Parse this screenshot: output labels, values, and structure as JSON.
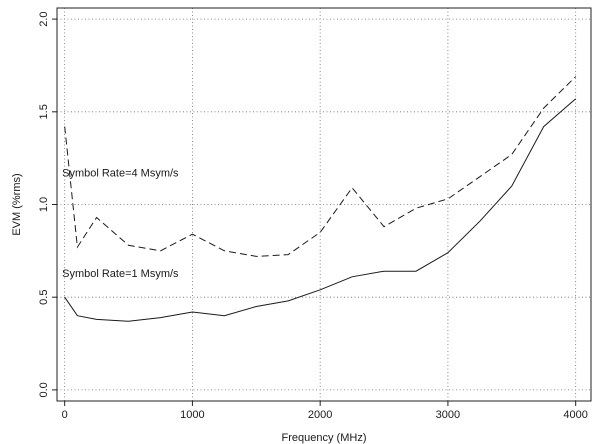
{
  "chart_data": {
    "type": "line",
    "xlabel": "Frequency (MHz)",
    "ylabel": "EVM (%rms)",
    "xlim": [
      -60,
      4120
    ],
    "ylim": [
      -0.06,
      2.06
    ],
    "xticks": [
      0,
      1000,
      2000,
      3000,
      4000
    ],
    "yticks": [
      0.0,
      0.5,
      1.0,
      1.5,
      2.0
    ],
    "ytick_labels": [
      "0.0",
      "0.5",
      "1.0",
      "1.5",
      "2.0"
    ],
    "grid": true,
    "series": [
      {
        "name": "Symbol Rate=4 Msym/s",
        "style": "dashed",
        "x": [
          0,
          100,
          250,
          500,
          750,
          1000,
          1250,
          1500,
          1750,
          2000,
          2250,
          2500,
          2750,
          3000,
          3250,
          3500,
          3750,
          4000
        ],
        "y": [
          1.42,
          0.77,
          0.93,
          0.78,
          0.75,
          0.84,
          0.75,
          0.72,
          0.73,
          0.85,
          1.09,
          0.88,
          0.98,
          1.03,
          1.15,
          1.27,
          1.52,
          1.69
        ]
      },
      {
        "name": "Symbol Rate=1 Msym/s",
        "style": "solid",
        "x": [
          0,
          100,
          250,
          500,
          750,
          1000,
          1250,
          1500,
          1750,
          2000,
          2250,
          2500,
          2750,
          3000,
          3250,
          3500,
          3750,
          4000
        ],
        "y": [
          0.5,
          0.4,
          0.38,
          0.37,
          0.39,
          0.42,
          0.4,
          0.45,
          0.48,
          0.54,
          0.61,
          0.64,
          0.64,
          0.74,
          0.91,
          1.1,
          1.42,
          1.57
        ]
      }
    ],
    "annotations": [
      {
        "text": "Symbol Rate=4 Msym/s",
        "x": -20,
        "y": 1.15,
        "series": "Symbol Rate=4 Msym/s"
      },
      {
        "text": "Symbol Rate=1 Msym/s",
        "x": -20,
        "y": 0.61,
        "series": "Symbol Rate=1 Msym/s"
      }
    ]
  }
}
